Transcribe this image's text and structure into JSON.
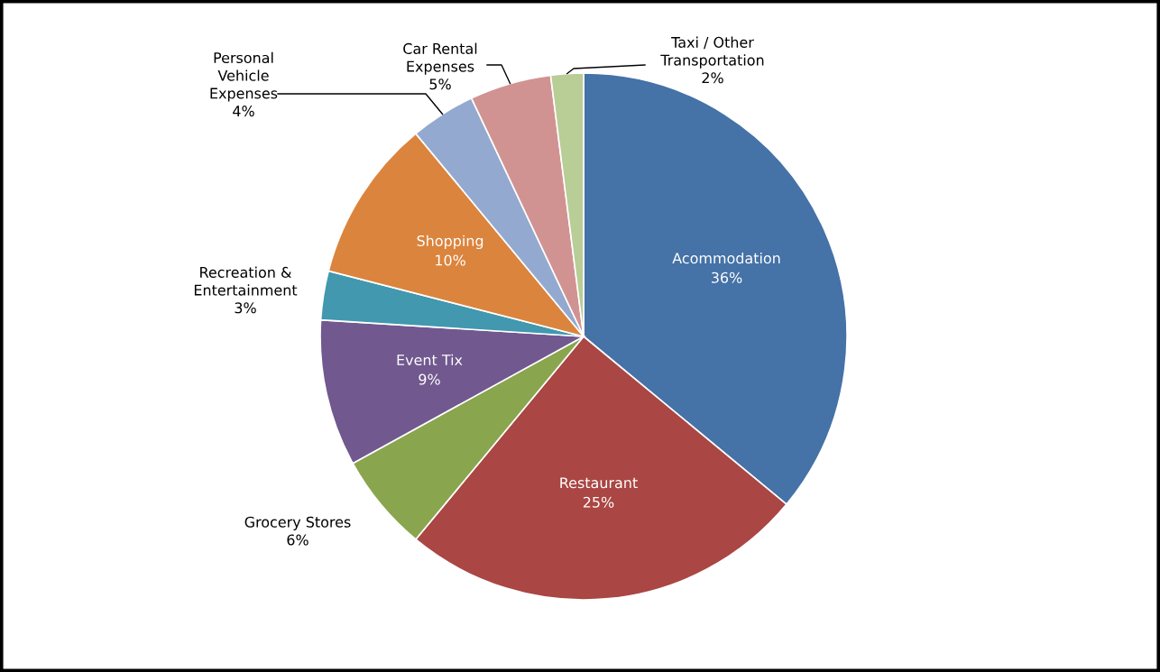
{
  "chart_data": {
    "type": "pie",
    "categories": [
      "Acommodation",
      "Restaurant",
      "Grocery Stores",
      "Event Tix",
      "Recreation &\nEntertainment",
      "Shopping",
      "Personal\nVehicle\nExpenses",
      "Car Rental\nExpenses",
      "Taxi / Other\nTransportation"
    ],
    "values": [
      36,
      25,
      6,
      9,
      3,
      10,
      4,
      5,
      2
    ],
    "value_labels": [
      "36%",
      "25%",
      "6%",
      "9%",
      "3%",
      "10%",
      "4%",
      "5%",
      "2%"
    ],
    "colors": [
      "#4572a7",
      "#aa4643",
      "#89a54e",
      "#71588f",
      "#4198af",
      "#db843d",
      "#93a9cf",
      "#d19392",
      "#b9cd96"
    ]
  }
}
